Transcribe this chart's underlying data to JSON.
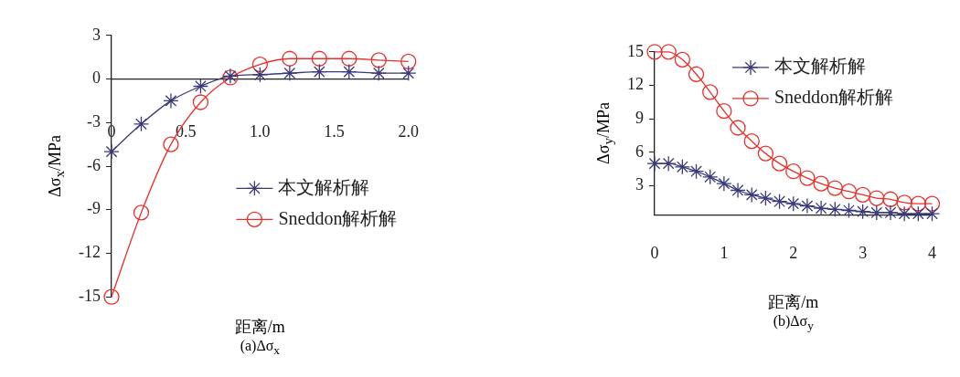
{
  "chart_data": [
    {
      "type": "line",
      "xlabel": "距离/m",
      "ylabel": "Δσ$_{x}$/MPa",
      "annotations": [
        "(a)Δσ$_{x}$"
      ],
      "legend": "right",
      "x": [
        0,
        0.2,
        0.4,
        0.6,
        0.8,
        1.0,
        1.2,
        1.4,
        1.6,
        1.8,
        2.0
      ],
      "xlim": [
        0,
        2
      ],
      "xticks": [
        0,
        0.5,
        {
          "value": 1,
          "label": "1.0"
        },
        1.5,
        {
          "value": 2,
          "label": "2.0"
        }
      ],
      "ylim": [
        -15,
        3
      ],
      "yticks": [
        3,
        0,
        -3,
        -6,
        -9,
        -12,
        -15
      ],
      "series": [
        {
          "name": "本文解析解",
          "color": "#3a3a7a",
          "marker": "cross",
          "values": [
            -5.0,
            -3.1,
            -1.5,
            -0.5,
            0.2,
            0.3,
            0.4,
            0.5,
            0.5,
            0.4,
            0.4
          ]
        },
        {
          "name": "Sneddon解析解",
          "color": "#e8302a",
          "marker": "circle",
          "values": [
            -15,
            -9.2,
            -4.5,
            -1.6,
            0.1,
            1.0,
            1.4,
            1.4,
            1.4,
            1.3,
            1.2
          ]
        }
      ]
    },
    {
      "type": "line",
      "xlabel": "距离/m",
      "ylabel": "Δσ$_{y}$/MPa",
      "annotations": [
        "(b)Δσ$_{y}$"
      ],
      "legend": "top right",
      "x": [
        0,
        0.2,
        0.4,
        0.6,
        0.8,
        1.0,
        1.2,
        1.4,
        1.6,
        1.8,
        2.0,
        2.2,
        2.4,
        2.6,
        2.8,
        3.0,
        3.2,
        3.4,
        3.6,
        3.8,
        4.0
      ],
      "xlim": [
        0,
        4
      ],
      "xticks": [
        0,
        1,
        2,
        3,
        4
      ],
      "ylim": [
        0.4,
        15
      ],
      "yticks": [
        3,
        6,
        9,
        12,
        15
      ],
      "series": [
        {
          "name": "本文解析解",
          "color": "#3a3a7a",
          "marker": "cross",
          "values": [
            5.0,
            5.0,
            4.7,
            4.3,
            3.8,
            3.2,
            2.6,
            2.2,
            1.9,
            1.6,
            1.4,
            1.2,
            1.0,
            0.9,
            0.8,
            0.7,
            0.6,
            0.6,
            0.5,
            0.5,
            0.5
          ]
        },
        {
          "name": "Sneddon解析解",
          "color": "#e8302a",
          "marker": "circle",
          "values": [
            15,
            15.0,
            14.3,
            13.0,
            11.4,
            9.7,
            8.2,
            7.0,
            5.9,
            5.0,
            4.3,
            3.7,
            3.2,
            2.8,
            2.5,
            2.2,
            1.9,
            1.8,
            1.5,
            1.4,
            1.4
          ]
        }
      ]
    }
  ]
}
